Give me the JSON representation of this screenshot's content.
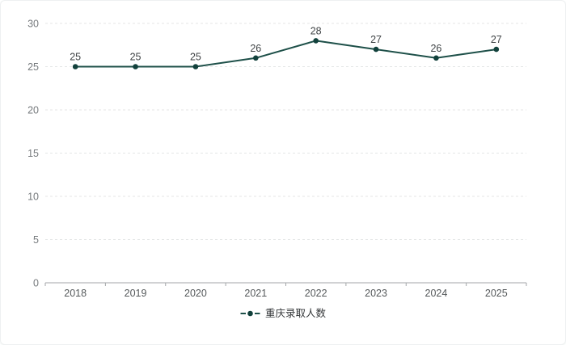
{
  "chart_data": {
    "type": "line",
    "title": "",
    "categories": [
      "2018",
      "2019",
      "2020",
      "2021",
      "2022",
      "2023",
      "2024",
      "2025"
    ],
    "series": [
      {
        "name": "重庆录取人数",
        "values": [
          25,
          25,
          25,
          26,
          28,
          27,
          26,
          27
        ]
      }
    ],
    "data_labels_shown": true,
    "ylim": [
      0,
      30
    ],
    "ytick_step": 5,
    "yticks": [
      0,
      5,
      10,
      15,
      20,
      25,
      30
    ],
    "grid": "horizontal dashed",
    "legend_position": "bottom-center",
    "colors": {
      "line": "#1e5049",
      "marker": "#12413c",
      "grid": "#e4e6e6",
      "axis_line": "#a3a6a8",
      "axis_text": "#767a7d",
      "category_text": "#54585a",
      "data_label": "#3f4345",
      "legend_text": "#333638"
    }
  }
}
